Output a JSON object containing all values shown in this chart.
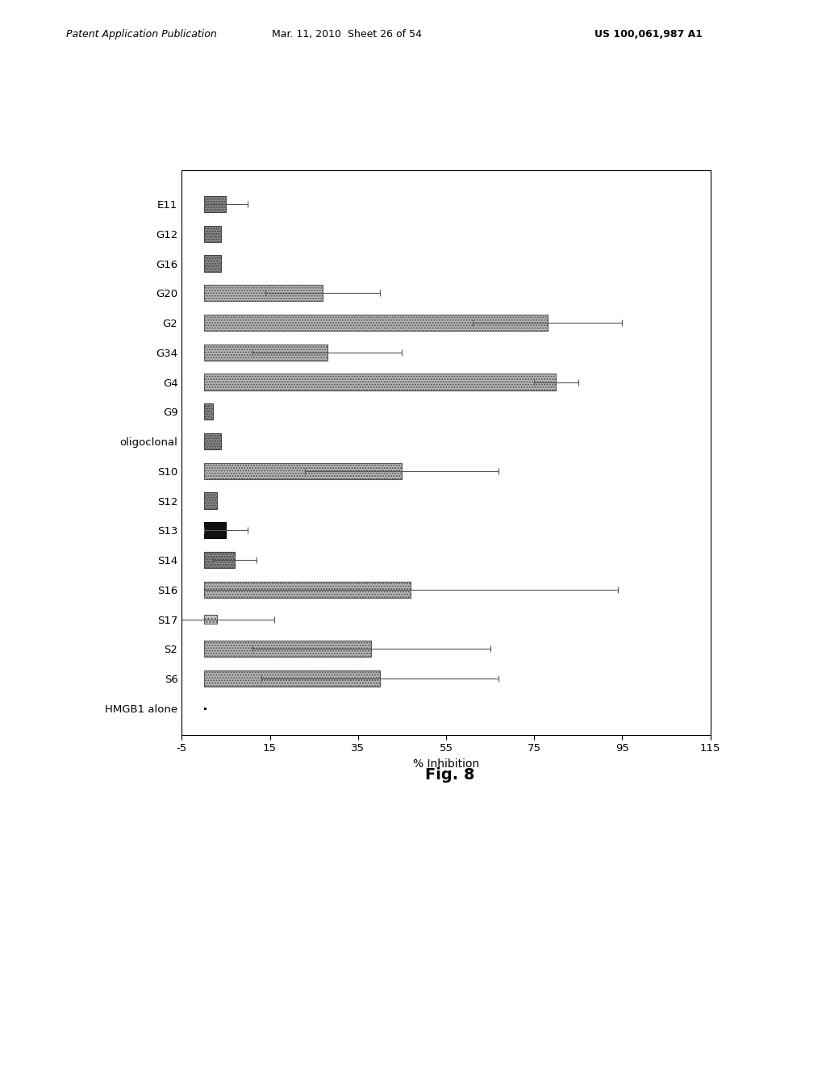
{
  "categories": [
    "E11",
    "G12",
    "G16",
    "G20",
    "G2",
    "G34",
    "G4",
    "G9",
    "oligoclonal",
    "S10",
    "S12",
    "S13",
    "S14",
    "S16",
    "S17",
    "S2",
    "S6",
    "HMGB1 alone"
  ],
  "values": [
    5,
    4,
    4,
    27,
    78,
    28,
    80,
    2,
    4,
    45,
    3,
    5,
    7,
    47,
    3,
    38,
    40,
    0.5
  ],
  "errors": [
    5,
    0,
    0,
    13,
    17,
    17,
    5,
    0,
    0,
    22,
    0,
    5,
    5,
    47,
    13,
    27,
    27,
    0
  ],
  "bar_types": [
    "dark_dot",
    "dark_dot",
    "dark_dot",
    "light_dot",
    "light_dot",
    "light_dot",
    "light_dot",
    "dark_dot",
    "dark_dot",
    "light_dot",
    "dark_dot",
    "black",
    "dark_dot",
    "light_dot",
    "small_dot",
    "light_dot",
    "light_dot",
    "black_thin"
  ],
  "xlabel": "% Inhibition",
  "fig_label": "Fig. 8",
  "xlim": [
    -5,
    115
  ],
  "xticks": [
    -5,
    15,
    35,
    55,
    75,
    95,
    115
  ],
  "xtick_labels": [
    "-5",
    "15",
    "35",
    "55",
    "75",
    "95",
    "115"
  ],
  "bar_height": 0.55,
  "header_left": "Patent Application Publication",
  "header_mid": "Mar. 11, 2010  Sheet 26 of 54",
  "header_right": "US 100,061,987 A1"
}
